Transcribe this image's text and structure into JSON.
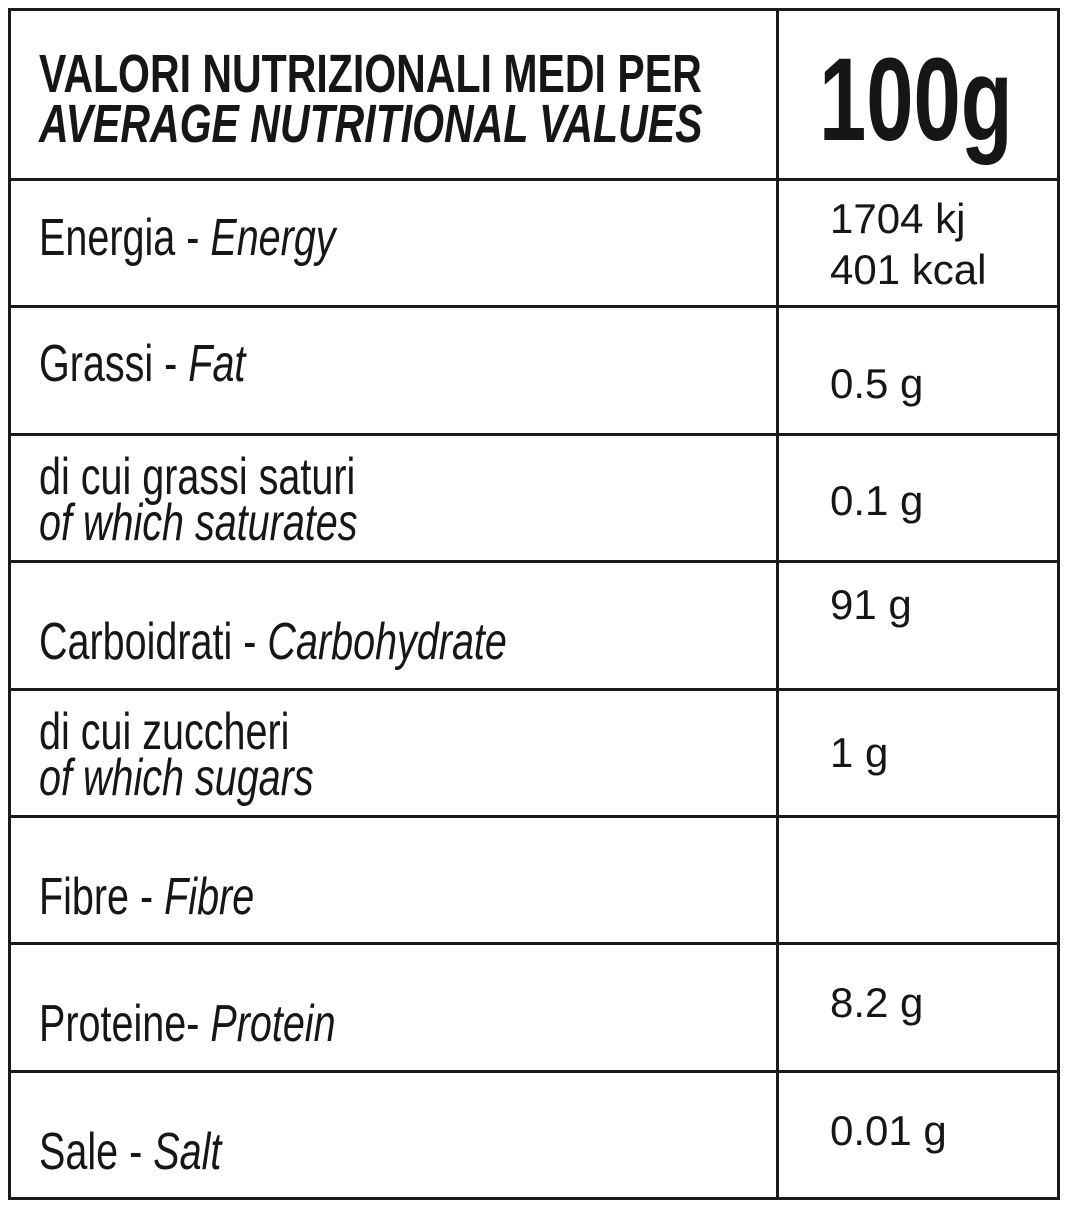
{
  "header": {
    "title_it": "VALORI NUTRIZIONALI MEDI PER",
    "title_en": "AVERAGE NUTRITIONAL VALUES",
    "amount": "100g"
  },
  "rows": [
    {
      "label_it": "Energia -",
      "label_en": "Energy",
      "value": [
        "1704 kj",
        "401 kcal"
      ]
    },
    {
      "label_it": "Grassi -",
      "label_en": "Fat",
      "value": [
        "0.5 g"
      ]
    },
    {
      "label_it": "di cui grassi saturi",
      "label_en": "of which saturates",
      "value": [
        "0.1 g"
      ]
    },
    {
      "label_it": "Carboidrati -",
      "label_en": "Carbohydrate",
      "value": [
        "91 g"
      ]
    },
    {
      "label_it": "di cui zuccheri",
      "label_en": "of which sugars",
      "value": [
        "1 g"
      ]
    },
    {
      "label_it": "Fibre -",
      "label_en": "Fibre"
    },
    {
      "label_it": "Proteine-",
      "label_en": "Protein",
      "value": [
        "8.2 g"
      ]
    },
    {
      "label_it": "Sale -",
      "label_en": "Salt",
      "value": [
        "0.01 g"
      ]
    }
  ]
}
